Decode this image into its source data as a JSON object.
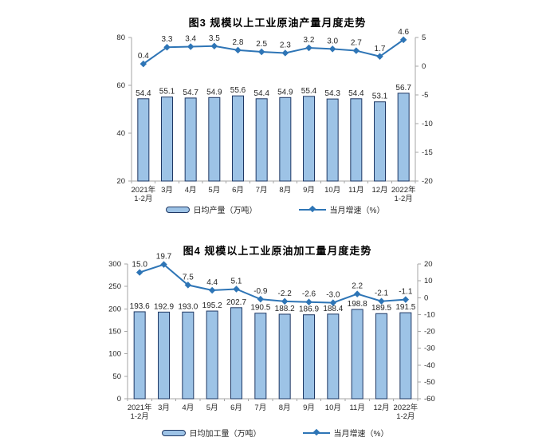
{
  "colors": {
    "bar_fill": "#9DC3E6",
    "bar_border": "#1F3864",
    "line": "#2E75B6",
    "axis": "#A6A6A6",
    "label": "#262626",
    "title": "#000000"
  },
  "chart_data": [
    {
      "type": "bar",
      "combo": "bar+line-dual-axis",
      "title": "图3  规模以上工业原油产量月度走势",
      "categories": [
        "2021年\n1-2月",
        "3月",
        "4月",
        "5月",
        "6月",
        "7月",
        "8月",
        "9月",
        "10月",
        "11月",
        "12月",
        "2022年\n1-2月"
      ],
      "series": [
        {
          "name": "日均产量（万吨）",
          "type": "bar",
          "axis": "left",
          "values": [
            54.4,
            55.1,
            54.7,
            54.9,
            55.6,
            54.4,
            54.9,
            55.4,
            54.3,
            54.4,
            53.1,
            56.7
          ]
        },
        {
          "name": "当月增速（%）",
          "type": "line",
          "axis": "right",
          "values": [
            0.4,
            3.3,
            3.4,
            3.5,
            2.8,
            2.5,
            2.3,
            3.2,
            3.0,
            2.7,
            1.7,
            4.6
          ]
        }
      ],
      "left_axis": {
        "min": 20,
        "max": 80,
        "step": 20
      },
      "right_axis": {
        "min": -20,
        "max": 5,
        "step": 5
      },
      "grid": false,
      "legend_position": "bottom",
      "value_labels": true
    },
    {
      "type": "bar",
      "combo": "bar+line-dual-axis",
      "title": "图4  规模以上工业原油加工量月度走势",
      "categories": [
        "2021年\n1-2月",
        "3月",
        "4月",
        "5月",
        "6月",
        "7月",
        "8月",
        "9月",
        "10月",
        "11月",
        "12月",
        "2022年\n1-2月"
      ],
      "series": [
        {
          "name": "日均加工量（万吨）",
          "type": "bar",
          "axis": "left",
          "values": [
            193.6,
            192.9,
            193.0,
            195.2,
            202.7,
            190.5,
            188.2,
            186.9,
            188.4,
            198.8,
            189.5,
            191.5
          ]
        },
        {
          "name": "当月增速（%）",
          "type": "line",
          "axis": "right",
          "values": [
            15.0,
            19.7,
            7.5,
            4.4,
            5.1,
            -0.9,
            -2.2,
            -2.6,
            -3.0,
            2.2,
            -2.1,
            -1.1
          ]
        }
      ],
      "left_axis": {
        "min": 0,
        "max": 300,
        "step": 50
      },
      "right_axis": {
        "min": -60,
        "max": 20,
        "step": 10
      },
      "grid": false,
      "legend_position": "bottom",
      "value_labels": true
    }
  ]
}
